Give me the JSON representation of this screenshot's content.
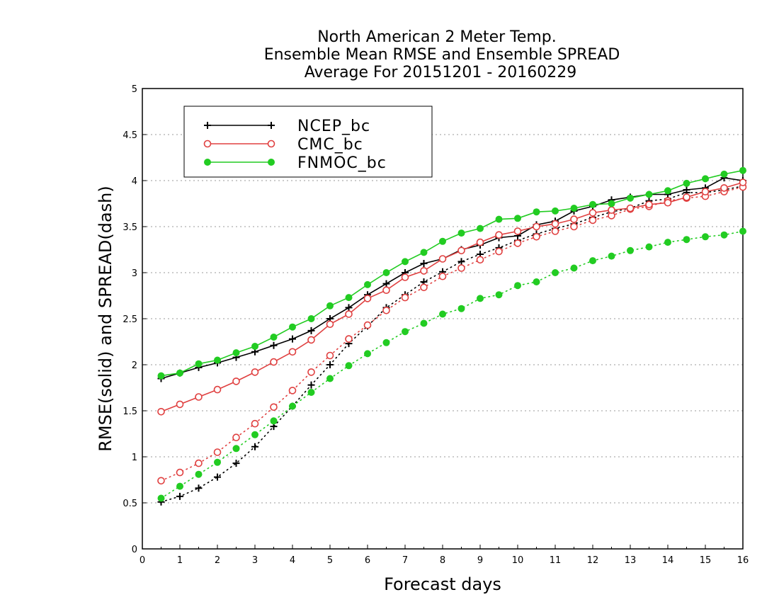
{
  "chart_data": {
    "type": "line",
    "title_lines": [
      "North American 2 Meter Temp.",
      "Ensemble Mean RMSE and Ensemble SPREAD",
      "Average For 20151201 - 20160229"
    ],
    "xlabel": "Forecast days",
    "ylabel": "RMSE(solid) and SPREAD(dash)",
    "xlim": [
      0,
      16
    ],
    "ylim": [
      0,
      5
    ],
    "x_ticks": [
      0,
      1,
      2,
      3,
      4,
      5,
      6,
      7,
      8,
      9,
      10,
      11,
      12,
      13,
      14,
      15,
      16
    ],
    "y_ticks": [
      0,
      0.5,
      1,
      1.5,
      2,
      2.5,
      3,
      3.5,
      4,
      4.5,
      5
    ],
    "y_tick_labels": [
      "0",
      "0.5",
      "1",
      "1.5",
      "2",
      "2.5",
      "3",
      "3.5",
      "4",
      "4.5",
      "5"
    ],
    "grid": "horizontal dotted",
    "legend_position": "top-left",
    "x": [
      0.5,
      1,
      1.5,
      2,
      2.5,
      3,
      3.5,
      4,
      4.5,
      5,
      5.5,
      6,
      6.5,
      7,
      7.5,
      8,
      8.5,
      9,
      9.5,
      10,
      10.5,
      11,
      11.5,
      12,
      12.5,
      13,
      13.5,
      14,
      14.5,
      15,
      15.5,
      16
    ],
    "series": [
      {
        "name": "NCEP_bc",
        "color": "#000000",
        "marker": "plus",
        "rmse": [
          1.85,
          1.91,
          1.97,
          2.02,
          2.08,
          2.14,
          2.21,
          2.28,
          2.37,
          2.5,
          2.62,
          2.76,
          2.88,
          3.0,
          3.1,
          3.15,
          3.25,
          3.3,
          3.38,
          3.4,
          3.52,
          3.56,
          3.67,
          3.72,
          3.79,
          3.82,
          3.85,
          3.85,
          3.9,
          3.92,
          4.03,
          4.0
        ],
        "spread": [
          0.51,
          0.57,
          0.66,
          0.78,
          0.93,
          1.11,
          1.33,
          1.55,
          1.78,
          2.0,
          2.23,
          2.42,
          2.62,
          2.76,
          2.9,
          3.01,
          3.12,
          3.2,
          3.27,
          3.35,
          3.42,
          3.48,
          3.53,
          3.6,
          3.66,
          3.7,
          3.78,
          3.8,
          3.87,
          3.87,
          3.9,
          3.94
        ]
      },
      {
        "name": "CMC_bc",
        "color": "#e04040",
        "marker": "open-circle",
        "rmse": [
          1.49,
          1.57,
          1.65,
          1.73,
          1.82,
          1.92,
          2.03,
          2.14,
          2.27,
          2.44,
          2.55,
          2.72,
          2.81,
          2.95,
          3.02,
          3.15,
          3.24,
          3.33,
          3.41,
          3.45,
          3.5,
          3.53,
          3.58,
          3.65,
          3.68,
          3.7,
          3.74,
          3.76,
          3.82,
          3.88,
          3.92,
          3.98
        ],
        "spread": [
          0.74,
          0.83,
          0.93,
          1.05,
          1.21,
          1.36,
          1.54,
          1.72,
          1.92,
          2.1,
          2.28,
          2.43,
          2.59,
          2.73,
          2.84,
          2.96,
          3.05,
          3.14,
          3.23,
          3.32,
          3.39,
          3.45,
          3.5,
          3.57,
          3.62,
          3.69,
          3.72,
          3.78,
          3.81,
          3.83,
          3.88,
          3.93
        ]
      },
      {
        "name": "FNMOC_bc",
        "color": "#22cc22",
        "marker": "filled-circle",
        "rmse": [
          1.88,
          1.91,
          2.01,
          2.05,
          2.13,
          2.2,
          2.3,
          2.41,
          2.5,
          2.64,
          2.73,
          2.87,
          3.0,
          3.12,
          3.22,
          3.34,
          3.43,
          3.48,
          3.58,
          3.59,
          3.66,
          3.67,
          3.7,
          3.74,
          3.75,
          3.81,
          3.85,
          3.89,
          3.97,
          4.02,
          4.07,
          4.11
        ],
        "spread": [
          0.55,
          0.68,
          0.81,
          0.94,
          1.09,
          1.24,
          1.39,
          1.55,
          1.7,
          1.85,
          1.99,
          2.12,
          2.24,
          2.36,
          2.45,
          2.55,
          2.61,
          2.72,
          2.76,
          2.86,
          2.9,
          3.0,
          3.05,
          3.13,
          3.18,
          3.24,
          3.28,
          3.33,
          3.36,
          3.39,
          3.41,
          3.45
        ]
      }
    ]
  }
}
